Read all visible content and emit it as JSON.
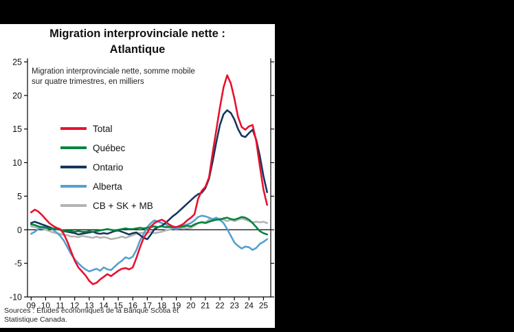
{
  "header": {
    "title_line1": "Migration interprovinciale nette :",
    "title_line2": "Atlantique"
  },
  "chart_data": {
    "type": "line",
    "title": "Migration interprovinciale nette : Atlantique",
    "note": "Migration interprovinciale nette, somme mobile sur quatre trimestres, en milliers",
    "source": "Sources : Études économiques de la Banque Scotia et Statistique Canada.",
    "legend_position": "left-middle-inside",
    "grid": false,
    "y_axis": {
      "min": -10,
      "max": 25,
      "ticks": [
        25,
        20,
        15,
        10,
        5,
        0,
        -5,
        -10
      ]
    },
    "x_axis": {
      "min": 2008.75,
      "max": 2025.5,
      "tick_values": [
        2009,
        2010,
        2011,
        2012,
        2013,
        2014,
        2015,
        2016,
        2017,
        2018,
        2019,
        2020,
        2021,
        2022,
        2023,
        2024,
        2025
      ],
      "tick_labels": [
        "09",
        "10",
        "11",
        "12",
        "13",
        "14",
        "15",
        "16",
        "17",
        "18",
        "19",
        "20",
        "21",
        "22",
        "23",
        "24",
        "25"
      ]
    },
    "x_start": 2009.0,
    "x_step": 0.25,
    "series": [
      {
        "name": "Total",
        "color": "#e8112d",
        "values": [
          2.6,
          3.0,
          2.7,
          2.2,
          1.6,
          1.0,
          0.6,
          0.3,
          0.1,
          -0.6,
          -1.8,
          -3.2,
          -4.6,
          -5.6,
          -6.2,
          -6.8,
          -7.6,
          -8.1,
          -7.9,
          -7.4,
          -7.0,
          -6.6,
          -6.9,
          -6.5,
          -6.1,
          -5.8,
          -5.7,
          -5.9,
          -5.6,
          -4.2,
          -2.6,
          -1.2,
          -0.4,
          0.5,
          1.0,
          1.3,
          1.5,
          1.2,
          0.8,
          0.5,
          0.4,
          0.6,
          0.9,
          1.4,
          1.8,
          2.3,
          4.6,
          5.8,
          6.4,
          7.8,
          11.5,
          14.8,
          18.2,
          21.2,
          23.0,
          21.8,
          19.5,
          16.8,
          15.3,
          14.9,
          15.4,
          15.6,
          13.2,
          9.5,
          6.0,
          3.7
        ]
      },
      {
        "name": "Québec",
        "color": "#00843d",
        "values": [
          0.8,
          0.7,
          0.5,
          0.4,
          0.3,
          0.2,
          0.2,
          0.1,
          0.0,
          -0.1,
          -0.2,
          -0.2,
          -0.3,
          -0.2,
          -0.3,
          -0.3,
          -0.2,
          -0.3,
          -0.2,
          -0.1,
          0.0,
          0.1,
          0.0,
          -0.1,
          0.0,
          0.1,
          0.2,
          0.1,
          0.1,
          0.2,
          0.3,
          0.2,
          0.3,
          0.4,
          0.5,
          0.4,
          0.5,
          0.4,
          0.4,
          0.4,
          0.4,
          0.5,
          0.5,
          0.6,
          0.5,
          0.8,
          1.0,
          1.1,
          1.0,
          1.2,
          1.4,
          1.5,
          1.5,
          1.7,
          1.8,
          1.6,
          1.5,
          1.7,
          1.9,
          1.8,
          1.5,
          1.0,
          0.4,
          -0.2,
          -0.5,
          -0.7
        ]
      },
      {
        "name": "Ontario",
        "color": "#16365c",
        "values": [
          1.0,
          1.2,
          1.0,
          0.8,
          0.6,
          0.4,
          0.2,
          0.1,
          0.0,
          -0.2,
          -0.3,
          -0.4,
          -0.5,
          -0.7,
          -0.6,
          -0.5,
          -0.4,
          -0.3,
          -0.5,
          -0.6,
          -0.5,
          -0.6,
          -0.4,
          -0.2,
          -0.1,
          -0.3,
          -0.5,
          -0.7,
          -0.5,
          -0.4,
          -0.8,
          -1.2,
          -1.4,
          -0.7,
          0.1,
          0.4,
          0.6,
          1.0,
          1.5,
          2.0,
          2.4,
          2.9,
          3.4,
          3.9,
          4.4,
          4.9,
          5.3,
          5.5,
          6.2,
          7.6,
          10.2,
          13.0,
          15.6,
          17.2,
          17.8,
          17.4,
          16.4,
          15.0,
          14.0,
          13.8,
          14.4,
          14.9,
          13.4,
          11.0,
          8.0,
          5.6
        ]
      },
      {
        "name": "Alberta",
        "color": "#54a0d0",
        "values": [
          -0.6,
          -0.3,
          0.1,
          0.4,
          0.5,
          0.3,
          0.0,
          -0.4,
          -0.9,
          -1.6,
          -2.6,
          -3.6,
          -4.4,
          -5.0,
          -5.5,
          -5.9,
          -6.2,
          -6.0,
          -5.8,
          -6.1,
          -5.6,
          -5.9,
          -6.0,
          -5.5,
          -5.0,
          -4.6,
          -4.1,
          -4.3,
          -4.0,
          -3.0,
          -1.6,
          -0.6,
          0.4,
          1.0,
          1.4,
          1.2,
          1.0,
          0.8,
          0.5,
          0.3,
          0.1,
          0.3,
          0.6,
          0.8,
          1.0,
          1.4,
          1.9,
          2.1,
          2.0,
          1.8,
          1.6,
          1.8,
          1.5,
          1.0,
          0.1,
          -0.9,
          -1.9,
          -2.4,
          -2.8,
          -2.5,
          -2.6,
          -3.0,
          -2.7,
          -2.1,
          -1.8,
          -1.4
        ]
      },
      {
        "name": "CB + SK + MB",
        "color": "#b3b3b3",
        "values": [
          0.5,
          0.4,
          0.3,
          0.2,
          0.0,
          -0.2,
          -0.4,
          -0.5,
          -0.6,
          -0.8,
          -0.8,
          -1.0,
          -1.0,
          -1.1,
          -0.9,
          -1.0,
          -1.1,
          -1.2,
          -1.0,
          -1.2,
          -1.1,
          -1.2,
          -1.4,
          -1.3,
          -1.2,
          -1.0,
          -1.2,
          -1.0,
          -0.8,
          -0.6,
          -0.5,
          -0.4,
          -0.5,
          -0.3,
          -0.5,
          -0.4,
          -0.3,
          -0.1,
          0.0,
          0.2,
          0.1,
          0.2,
          0.3,
          0.2,
          0.3,
          0.6,
          1.0,
          1.2,
          1.1,
          1.5,
          1.3,
          1.5,
          1.7,
          1.5,
          1.3,
          1.5,
          1.3,
          1.5,
          1.7,
          1.5,
          1.3,
          1.1,
          1.2,
          1.1,
          1.2,
          1.0
        ]
      }
    ]
  }
}
